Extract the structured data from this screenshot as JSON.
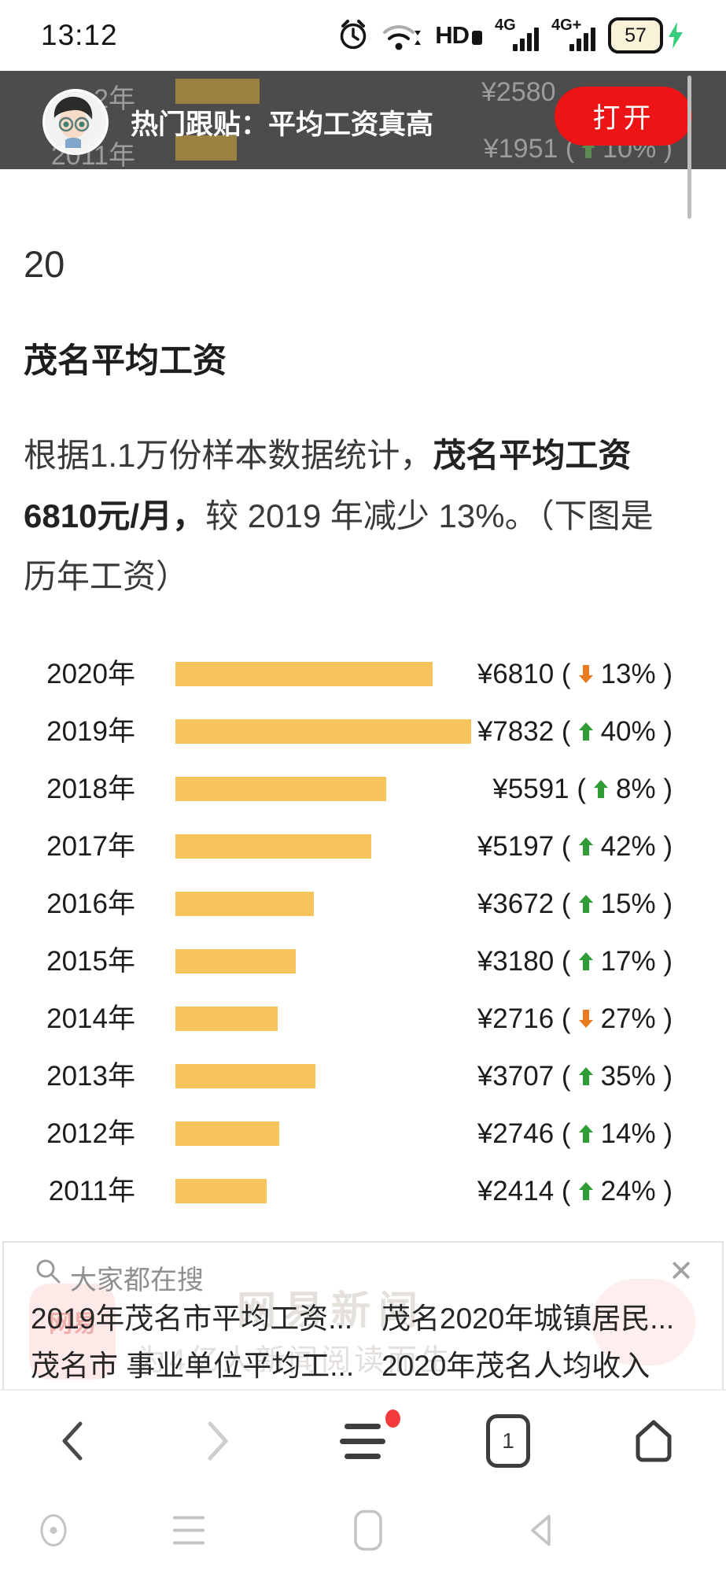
{
  "status_bar": {
    "time": "13:12",
    "hd_label": "HD",
    "net_primary": "4G",
    "net_secondary": "4G+",
    "battery_percent": "57"
  },
  "push_banner": {
    "title": "热门跟贴：平均工资真高",
    "open_button": "打开",
    "ghost_rows": [
      {
        "year": "2年",
        "value": "¥2580",
        "pct": "",
        "dir": ""
      },
      {
        "year": "2011年",
        "value": "¥1951",
        "pct": "10%",
        "dir": "up"
      }
    ]
  },
  "article": {
    "page_number": "20",
    "heading": "茂名平均工资",
    "paragraph_prefix": "根据1.1万份样本数据统计，",
    "paragraph_bold": "茂名平均工资6810元/月，",
    "paragraph_suffix": "较 2019 年减少 13%。（下图是历年工资）"
  },
  "chart_data": {
    "type": "bar",
    "orientation": "horizontal",
    "title": "历年工资",
    "categories": [
      "2020年",
      "2019年",
      "2018年",
      "2017年",
      "2016年",
      "2015年",
      "2014年",
      "2013年",
      "2012年",
      "2011年"
    ],
    "values": [
      6810,
      7832,
      5591,
      5197,
      3672,
      3180,
      2716,
      3707,
      2746,
      2414
    ],
    "value_labels": [
      "¥6810",
      "¥7832",
      "¥5591",
      "¥5197",
      "¥3672",
      "¥3180",
      "¥2716",
      "¥3707",
      "¥2746",
      "¥2414"
    ],
    "changes": [
      {
        "dir": "down",
        "pct": "13%"
      },
      {
        "dir": "up",
        "pct": "40%"
      },
      {
        "dir": "up",
        "pct": "8%"
      },
      {
        "dir": "up",
        "pct": "42%"
      },
      {
        "dir": "up",
        "pct": "15%"
      },
      {
        "dir": "up",
        "pct": "17%"
      },
      {
        "dir": "down",
        "pct": "27%"
      },
      {
        "dir": "up",
        "pct": "35%"
      },
      {
        "dir": "up",
        "pct": "14%"
      },
      {
        "dir": "up",
        "pct": "24%"
      }
    ],
    "xlim": [
      0,
      7832
    ],
    "bar_color": "#F7C45C",
    "up_color": "#2F9C35",
    "down_color": "#E87A1F",
    "ghost_up_color": "#5d8a52",
    "legend": "none",
    "grid": "off"
  },
  "search_panel": {
    "header": "大家都在搜",
    "close_glyph": "✕",
    "suggestions": [
      [
        "2019年茂名市平均工资...",
        "茂名2020年城镇居民..."
      ],
      [
        "茂名市 事业单位平均工...",
        "2020年茂名人均收入"
      ]
    ],
    "watermark_line1": "网易新闻",
    "watermark_line2": "为4亿人新闻阅读而生",
    "blob_left_text": "网易"
  },
  "toolbar": {
    "tab_count": "1"
  }
}
